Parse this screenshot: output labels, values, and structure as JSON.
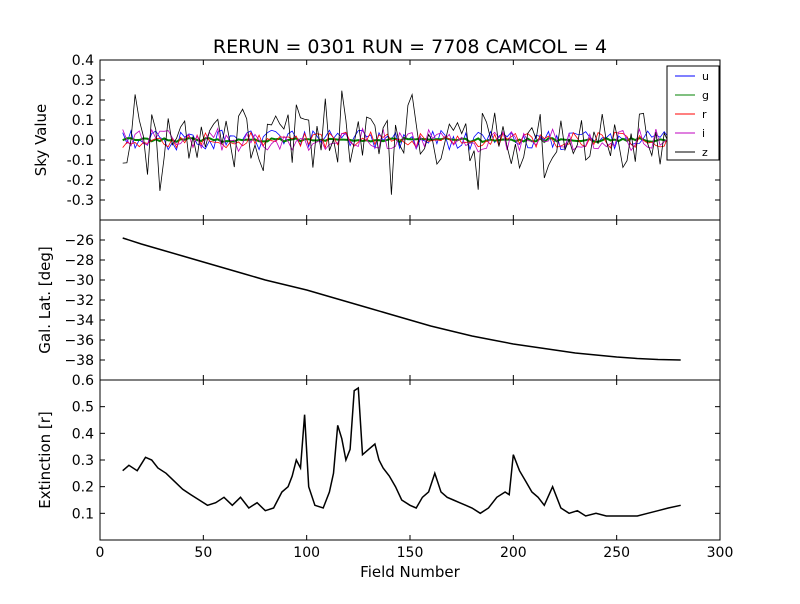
{
  "chart_data": {
    "title": "RERUN = 0301 RUN = 7708 CAMCOL = 4",
    "xlabel": "Field Number",
    "xlim": [
      0,
      300
    ],
    "xticks": [
      "0",
      "50",
      "100",
      "150",
      "200",
      "250",
      "300"
    ],
    "panels": [
      {
        "type": "line",
        "ylabel": "Sky Value",
        "ylim": [
          -0.4,
          0.4
        ],
        "yticks": [
          "0.4",
          "0.3",
          "0.2",
          "0.1",
          "0.0",
          "-0.1",
          "-0.2",
          "-0.3"
        ],
        "legend": "top-right",
        "series": [
          {
            "name": "u",
            "color": "#0000ff",
            "amplitude": 0.05
          },
          {
            "name": "g",
            "color": "#008000",
            "amplitude": 0.01
          },
          {
            "name": "r",
            "color": "#ff0000",
            "amplitude": 0.04
          },
          {
            "name": "i",
            "color": "#bf00bf",
            "amplitude": 0.06
          },
          {
            "name": "z",
            "color": "#000000",
            "amplitude": 0.14
          }
        ]
      },
      {
        "type": "line",
        "ylabel": "Gal. Lat. [deg]",
        "ylim": [
          -40,
          -24
        ],
        "yticks": [
          "−26",
          "−28",
          "−30",
          "−32",
          "−34",
          "−36",
          "−38"
        ],
        "series": [
          {
            "color": "#000000",
            "x": [
              11,
              20,
              30,
              40,
              50,
              60,
              70,
              80,
              90,
              100,
              110,
              120,
              130,
              140,
              150,
              160,
              170,
              180,
              190,
              200,
              210,
              220,
              230,
              240,
              250,
              260,
              270,
              281
            ],
            "y": [
              -25.8,
              -26.4,
              -27.0,
              -27.6,
              -28.2,
              -28.8,
              -29.4,
              -30.0,
              -30.5,
              -31.0,
              -31.6,
              -32.2,
              -32.8,
              -33.4,
              -34.0,
              -34.6,
              -35.1,
              -35.6,
              -36.0,
              -36.4,
              -36.7,
              -37.0,
              -37.3,
              -37.5,
              -37.7,
              -37.85,
              -37.95,
              -38.0
            ]
          }
        ]
      },
      {
        "type": "line",
        "ylabel": "Extinction [r]",
        "ylim": [
          0.0,
          0.6
        ],
        "yticks": [
          "0.6",
          "0.5",
          "0.4",
          "0.3",
          "0.2",
          "0.1"
        ],
        "series": [
          {
            "color": "#000000",
            "x": [
              11,
              14,
              18,
              22,
              25,
              28,
              32,
              36,
              40,
              44,
              48,
              52,
              56,
              60,
              64,
              68,
              72,
              76,
              80,
              84,
              88,
              91,
              93,
              95,
              97,
              99,
              101,
              104,
              108,
              111,
              113,
              115,
              117,
              119,
              121,
              123,
              125,
              127,
              130,
              133,
              135,
              137,
              140,
              143,
              146,
              150,
              153,
              156,
              159,
              162,
              165,
              168,
              171,
              174,
              177,
              180,
              184,
              188,
              192,
              196,
              198,
              200,
              203,
              206,
              209,
              212,
              215,
              219,
              223,
              227,
              231,
              235,
              240,
              245,
              250,
              255,
              260,
              265,
              270,
              275,
              281
            ],
            "y": [
              0.26,
              0.28,
              0.26,
              0.31,
              0.3,
              0.27,
              0.25,
              0.22,
              0.19,
              0.17,
              0.15,
              0.13,
              0.14,
              0.16,
              0.13,
              0.16,
              0.12,
              0.14,
              0.11,
              0.12,
              0.18,
              0.2,
              0.24,
              0.3,
              0.27,
              0.47,
              0.2,
              0.13,
              0.12,
              0.18,
              0.25,
              0.43,
              0.38,
              0.3,
              0.34,
              0.56,
              0.57,
              0.32,
              0.34,
              0.36,
              0.3,
              0.27,
              0.24,
              0.2,
              0.15,
              0.13,
              0.12,
              0.16,
              0.18,
              0.25,
              0.18,
              0.16,
              0.15,
              0.14,
              0.13,
              0.12,
              0.1,
              0.12,
              0.16,
              0.18,
              0.17,
              0.32,
              0.26,
              0.22,
              0.18,
              0.16,
              0.13,
              0.2,
              0.12,
              0.1,
              0.11,
              0.09,
              0.1,
              0.09,
              0.09,
              0.09,
              0.09,
              0.1,
              0.11,
              0.12,
              0.13
            ]
          }
        ]
      }
    ]
  }
}
